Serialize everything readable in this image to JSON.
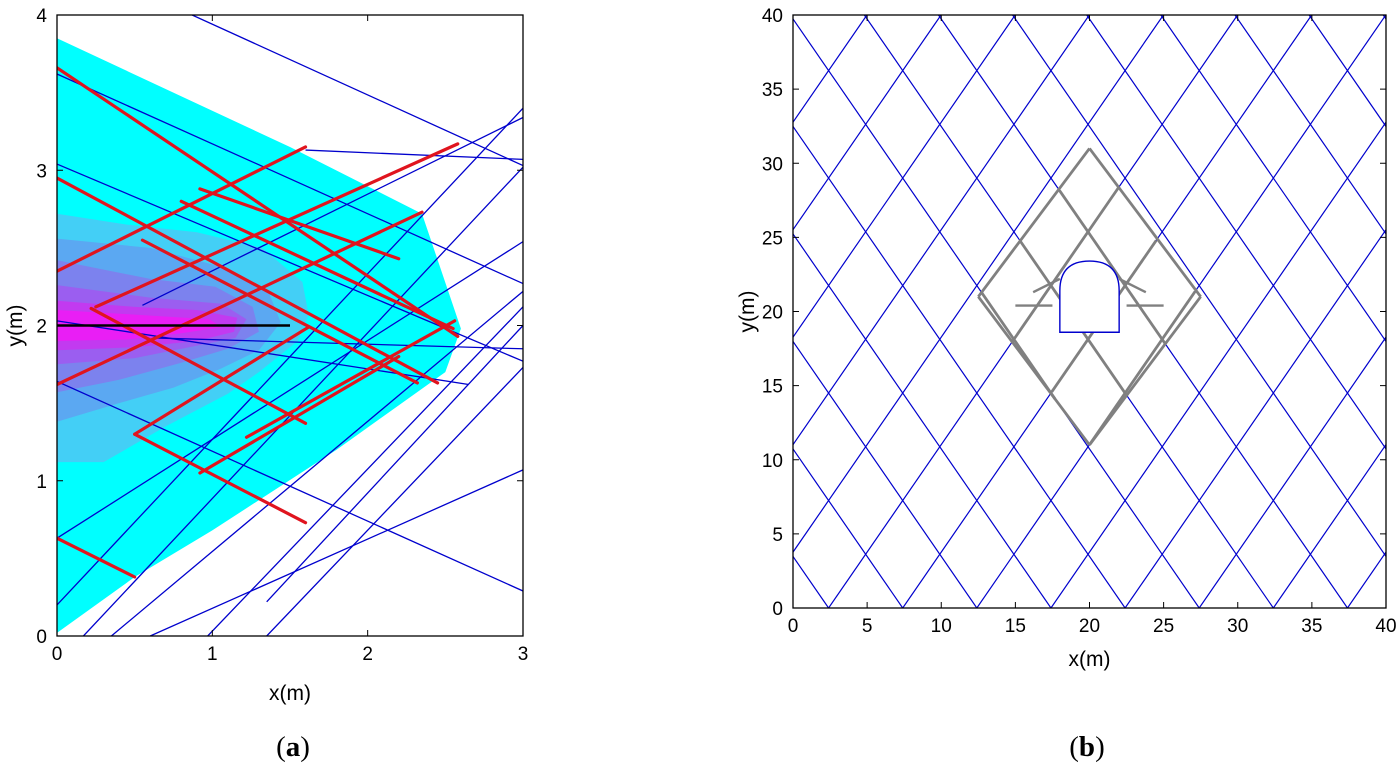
{
  "chart_data": [
    {
      "type": "line",
      "panel_label": "a",
      "xlabel": "x(m)",
      "ylabel": "y(m)",
      "xlim": [
        0,
        3
      ],
      "ylim": [
        0,
        4
      ],
      "xticks": [
        "0",
        "1",
        "2",
        "3"
      ],
      "yticks": [
        "0",
        "1",
        "2",
        "3",
        "4"
      ],
      "grid": false,
      "colors": {
        "contour_outer": "#00FFFF",
        "contour_levels": [
          "#43CFF6",
          "#5BA8F2",
          "#7C82EE",
          "#9B5EF0",
          "#C23AF0",
          "#E91EF5"
        ],
        "fracture_network": "#0000CD",
        "stimulated_fractures": "#E0141E",
        "borehole": "#000000"
      },
      "contour_outer_boundary": [
        [
          0,
          0.02
        ],
        [
          0,
          3.85
        ],
        [
          1.5,
          3.15
        ],
        [
          2.35,
          2.72
        ],
        [
          2.6,
          1.98
        ],
        [
          2.5,
          1.7
        ],
        [
          1.8,
          1.2
        ],
        [
          1.0,
          0.68
        ],
        [
          0.5,
          0.38
        ],
        [
          0,
          0.02
        ]
      ],
      "contour_levels": [
        [
          [
            0,
            1.12
          ],
          [
            0.3,
            1.12
          ],
          [
            0.7,
            1.35
          ],
          [
            1.1,
            1.56
          ],
          [
            1.3,
            1.7
          ],
          [
            1.55,
            1.9
          ],
          [
            1.62,
            2.07
          ],
          [
            1.58,
            2.28
          ],
          [
            1.32,
            2.5
          ],
          [
            0.9,
            2.6
          ],
          [
            0.45,
            2.65
          ],
          [
            0,
            2.72
          ]
        ],
        [
          [
            0,
            1.38
          ],
          [
            0.4,
            1.5
          ],
          [
            0.75,
            1.6
          ],
          [
            1.05,
            1.72
          ],
          [
            1.3,
            1.84
          ],
          [
            1.44,
            2.02
          ],
          [
            1.36,
            2.22
          ],
          [
            1.05,
            2.38
          ],
          [
            0.6,
            2.5
          ],
          [
            0,
            2.56
          ]
        ],
        [
          [
            0,
            1.57
          ],
          [
            0.4,
            1.65
          ],
          [
            0.8,
            1.76
          ],
          [
            1.1,
            1.85
          ],
          [
            1.3,
            1.96
          ],
          [
            1.26,
            2.12
          ],
          [
            1.02,
            2.25
          ],
          [
            0.6,
            2.3
          ],
          [
            0,
            2.42
          ]
        ],
        [
          [
            0,
            1.75
          ],
          [
            0.5,
            1.79
          ],
          [
            0.85,
            1.86
          ],
          [
            1.15,
            1.92
          ],
          [
            1.22,
            2.04
          ],
          [
            1.06,
            2.14
          ],
          [
            0.6,
            2.18
          ],
          [
            0,
            2.26
          ]
        ],
        [
          [
            0,
            1.84
          ],
          [
            0.5,
            1.86
          ],
          [
            0.9,
            1.9
          ],
          [
            1.14,
            1.96
          ],
          [
            1.16,
            2.05
          ],
          [
            0.9,
            2.1
          ],
          [
            0.5,
            2.12
          ],
          [
            0,
            2.16
          ]
        ],
        [
          [
            0,
            1.9
          ],
          [
            0.45,
            1.91
          ],
          [
            0.8,
            1.95
          ],
          [
            1.06,
            1.99
          ],
          [
            0.98,
            2.04
          ],
          [
            0.5,
            2.07
          ],
          [
            0,
            2.1
          ]
        ]
      ],
      "fracture_network": [
        [
          [
            0,
            3.62
          ],
          [
            3,
            2.27
          ]
        ],
        [
          [
            0.87,
            4
          ],
          [
            3,
            3.03
          ]
        ],
        [
          [
            0,
            1.64
          ],
          [
            3,
            0.29
          ]
        ],
        [
          [
            0.6,
            0
          ],
          [
            3,
            1.07
          ]
        ],
        [
          [
            0,
            0.2
          ],
          [
            3,
            3.4
          ]
        ],
        [
          [
            1.6,
            3.13
          ],
          [
            3,
            3.07
          ]
        ],
        [
          [
            0.17,
            0
          ],
          [
            3,
            3.02
          ]
        ],
        [
          [
            0.35,
            0
          ],
          [
            3,
            2.22
          ]
        ],
        [
          [
            0.97,
            0
          ],
          [
            3,
            2.12
          ]
        ],
        [
          [
            1.35,
            0
          ],
          [
            3,
            1.73
          ]
        ],
        [
          [
            0,
            2.03
          ],
          [
            2.65,
            1.62
          ]
        ],
        [
          [
            0.55,
            2.13
          ],
          [
            3,
            3.34
          ]
        ],
        [
          [
            0.62,
            1.92
          ],
          [
            3,
            1.85
          ]
        ],
        [
          [
            1.35,
            0.22
          ],
          [
            3,
            2.0
          ]
        ],
        [
          [
            0,
            3.04
          ],
          [
            3,
            1.77
          ]
        ],
        [
          [
            0,
            0.63
          ],
          [
            3,
            2.54
          ]
        ]
      ],
      "stimulated_fractures": [
        [
          [
            0,
            3.66
          ],
          [
            2.58,
            1.93
          ]
        ],
        [
          [
            0,
            2.95
          ],
          [
            2.45,
            1.63
          ]
        ],
        [
          [
            0,
            1.62
          ],
          [
            2.35,
            2.73
          ]
        ],
        [
          [
            0,
            2.35
          ],
          [
            1.6,
            3.15
          ]
        ],
        [
          [
            0.25,
            2.12
          ],
          [
            2.58,
            3.17
          ]
        ],
        [
          [
            0.5,
            1.3
          ],
          [
            1.62,
            1.99
          ]
        ],
        [
          [
            0.5,
            1.3
          ],
          [
            1.6,
            0.73
          ]
        ],
        [
          [
            0,
            0.63
          ],
          [
            0.5,
            0.38
          ]
        ],
        [
          [
            0.8,
            2.8
          ],
          [
            2.55,
            1.98
          ]
        ],
        [
          [
            1.22,
            1.28
          ],
          [
            2.56,
            2.03
          ]
        ],
        [
          [
            0.92,
            2.88
          ],
          [
            2.2,
            2.43
          ]
        ],
        [
          [
            0.92,
            1.05
          ],
          [
            2.2,
            1.8
          ]
        ],
        [
          [
            0.22,
            2.11
          ],
          [
            1.6,
            1.37
          ]
        ],
        [
          [
            0.55,
            2.55
          ],
          [
            2.32,
            1.63
          ]
        ]
      ],
      "borehole": [
        [
          0,
          2.0
        ],
        [
          1.5,
          2.0
        ]
      ]
    },
    {
      "type": "line",
      "panel_label": "b",
      "xlabel": "x(m)",
      "ylabel": "y(m)",
      "xlim": [
        0,
        40
      ],
      "ylim": [
        0,
        40
      ],
      "xticks": [
        "0",
        "5",
        "10",
        "15",
        "20",
        "25",
        "30",
        "35",
        "40"
      ],
      "yticks": [
        "0",
        "5",
        "10",
        "15",
        "20",
        "25",
        "30",
        "35",
        "40"
      ],
      "grid": false,
      "colors": {
        "fracture_network": "#0000CD",
        "stimulated_fractures": "#808080",
        "tunnel": "#0000CD"
      },
      "fracture_set_slopes": [
        1.45,
        -1.45
      ],
      "fracture_set_x_intercepts": [
        -27.6,
        -22.6,
        -17.6,
        -12.6,
        -7.6,
        -2.6,
        2.4,
        7.4,
        12.4,
        17.4,
        22.4,
        27.4,
        32.4,
        37.4,
        42.4,
        47.4,
        52.4,
        57.4,
        62.4,
        67.4
      ],
      "stimulated_center": [
        20,
        21
      ],
      "stimulated_half_width": 7.5,
      "stimulated_half_height": 10,
      "tunnel": {
        "x_range": [
          18.0,
          22.0
        ],
        "floor_y": 18.6,
        "wall_top_y": 21.4,
        "crown_y": 23.4
      }
    }
  ]
}
